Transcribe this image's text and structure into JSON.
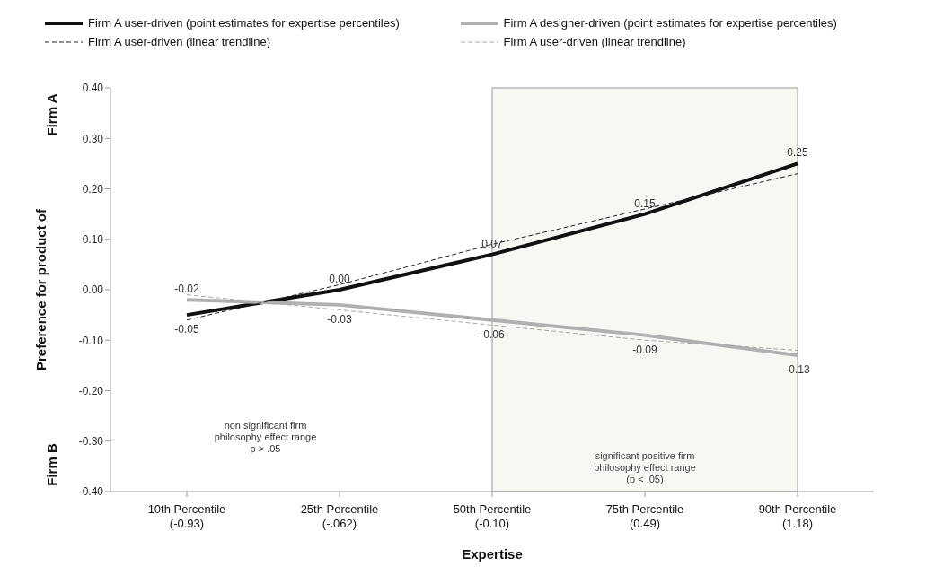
{
  "chart_data": {
    "type": "line",
    "xlabel": "Expertise",
    "ylabel": "Preference for product of",
    "categories": [
      "10th Percentile\n(-0.93)",
      "25th Percentile\n(-.062)",
      "50th Percentile\n(-0.10)",
      "75th Percentile\n(0.49)",
      "90th Percentile\n(1.18)"
    ],
    "series": [
      {
        "name": "Firm A user-driven (point estimates for expertise percentiles)",
        "color": "#111111",
        "values": [
          -0.05,
          0.0,
          0.07,
          0.15,
          0.25
        ],
        "value_labels": [
          "-0.05",
          "0.00",
          "0.07",
          "0.15",
          "0.25"
        ]
      },
      {
        "name": "Firm A designer-driven (point estimates for expertise percentiles)",
        "color": "#b0b0b0",
        "values": [
          -0.02,
          -0.03,
          -0.06,
          -0.09,
          -0.13
        ],
        "value_labels": [
          "-0.02",
          "-0.03",
          "-0.06",
          "-0.09",
          "-0.13"
        ]
      },
      {
        "name": "Firm A user-driven (linear trendline)",
        "color": "#222222",
        "line_style": "dashed",
        "values": [
          -0.06,
          0.01,
          0.09,
          0.16,
          0.23
        ]
      },
      {
        "name": "Firm A user-driven (linear trendline)",
        "color": "#a8a8a8",
        "line_style": "dashed",
        "values": [
          -0.01,
          -0.04,
          -0.07,
          -0.1,
          -0.12
        ]
      }
    ],
    "ylim": [
      -0.4,
      0.4
    ],
    "yticks": [
      {
        "value": 0.4,
        "label": "0.40"
      },
      {
        "value": 0.3,
        "label": "0.30"
      },
      {
        "value": 0.2,
        "label": "0.20"
      },
      {
        "value": 0.1,
        "label": "0.10"
      },
      {
        "value": 0,
        "label": "0.00"
      },
      {
        "value": -0.1,
        "label": "-0.10"
      },
      {
        "value": -0.2,
        "label": "-0.20"
      },
      {
        "value": -0.3,
        "label": "-0.30"
      },
      {
        "value": -0.4,
        "label": "-0.40"
      }
    ],
    "bands": [
      {
        "axis": "x",
        "from": "50th Percentile\n(-0.10)",
        "to": "90th Percentile\n(1.18)",
        "color": "#f8f7f4",
        "label": "significant positive firm\nphilosophy effect range\n(p < .05)"
      }
    ],
    "annotations": [
      "Firm A",
      "Firm B",
      "non significant firm\nphilosophy effect range\np > .05"
    ],
    "grid": false,
    "legend": "top",
    "marker": "none"
  }
}
